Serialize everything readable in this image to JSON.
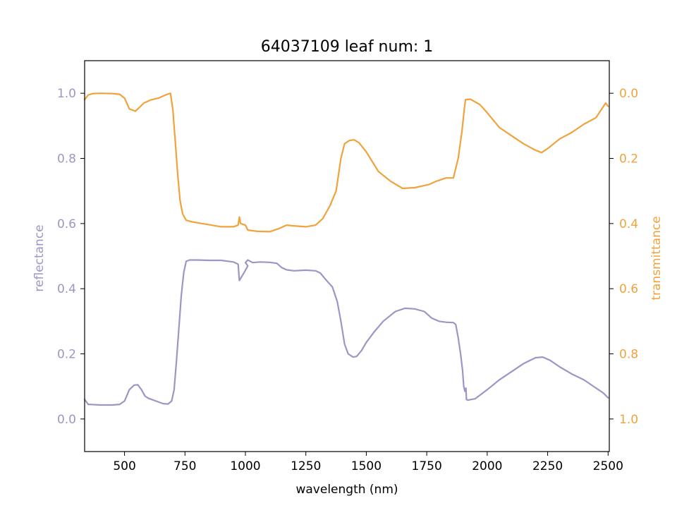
{
  "chart_data": {
    "type": "line",
    "title": "64037109 leaf num: 1",
    "xlabel": "wavelength (nm)",
    "ylabel_left": "reflectance",
    "ylabel_right": "transmittance",
    "xlim": [
      335,
      2505
    ],
    "ylim_left": [
      -0.1,
      1.1
    ],
    "ylim_right_inverted": [
      1.1,
      -0.1
    ],
    "xticks": [
      "500",
      "750",
      "1000",
      "1250",
      "1500",
      "1750",
      "2000",
      "2250",
      "2500"
    ],
    "yticks_left": [
      "0.0",
      "0.2",
      "0.4",
      "0.6",
      "0.8",
      "1.0"
    ],
    "yticks_right": [
      "0.0",
      "0.2",
      "0.4",
      "0.6",
      "0.8",
      "1.0"
    ],
    "grid": false,
    "colors": {
      "reflectance": "#9c96c6",
      "transmittance": "#f0a33c",
      "axes": "#000000"
    },
    "series": [
      {
        "name": "reflectance",
        "axis": "left",
        "points": [
          [
            335,
            0.06
          ],
          [
            350,
            0.045
          ],
          [
            400,
            0.043
          ],
          [
            450,
            0.043
          ],
          [
            480,
            0.045
          ],
          [
            500,
            0.055
          ],
          [
            520,
            0.09
          ],
          [
            540,
            0.104
          ],
          [
            555,
            0.105
          ],
          [
            570,
            0.09
          ],
          [
            585,
            0.07
          ],
          [
            600,
            0.063
          ],
          [
            630,
            0.055
          ],
          [
            660,
            0.047
          ],
          [
            680,
            0.046
          ],
          [
            695,
            0.055
          ],
          [
            705,
            0.09
          ],
          [
            715,
            0.18
          ],
          [
            725,
            0.28
          ],
          [
            735,
            0.38
          ],
          [
            745,
            0.45
          ],
          [
            755,
            0.484
          ],
          [
            770,
            0.488
          ],
          [
            800,
            0.488
          ],
          [
            850,
            0.487
          ],
          [
            900,
            0.487
          ],
          [
            950,
            0.482
          ],
          [
            970,
            0.475
          ],
          [
            975,
            0.425
          ],
          [
            995,
            0.45
          ],
          [
            1010,
            0.47
          ],
          [
            1000,
            0.48
          ],
          [
            1010,
            0.488
          ],
          [
            1030,
            0.48
          ],
          [
            1060,
            0.482
          ],
          [
            1100,
            0.481
          ],
          [
            1130,
            0.478
          ],
          [
            1150,
            0.465
          ],
          [
            1170,
            0.458
          ],
          [
            1200,
            0.455
          ],
          [
            1250,
            0.457
          ],
          [
            1290,
            0.455
          ],
          [
            1310,
            0.448
          ],
          [
            1330,
            0.43
          ],
          [
            1360,
            0.405
          ],
          [
            1380,
            0.36
          ],
          [
            1395,
            0.3
          ],
          [
            1410,
            0.23
          ],
          [
            1425,
            0.2
          ],
          [
            1445,
            0.19
          ],
          [
            1460,
            0.192
          ],
          [
            1480,
            0.21
          ],
          [
            1500,
            0.235
          ],
          [
            1530,
            0.265
          ],
          [
            1570,
            0.3
          ],
          [
            1620,
            0.33
          ],
          [
            1660,
            0.34
          ],
          [
            1700,
            0.338
          ],
          [
            1740,
            0.33
          ],
          [
            1770,
            0.31
          ],
          [
            1800,
            0.3
          ],
          [
            1830,
            0.297
          ],
          [
            1860,
            0.296
          ],
          [
            1870,
            0.29
          ],
          [
            1880,
            0.25
          ],
          [
            1890,
            0.2
          ],
          [
            1898,
            0.15
          ],
          [
            1903,
            0.1
          ],
          [
            1908,
            0.085
          ],
          [
            1912,
            0.095
          ],
          [
            1914,
            0.06
          ],
          [
            1920,
            0.058
          ],
          [
            1950,
            0.062
          ],
          [
            2000,
            0.09
          ],
          [
            2050,
            0.12
          ],
          [
            2100,
            0.145
          ],
          [
            2150,
            0.17
          ],
          [
            2200,
            0.188
          ],
          [
            2230,
            0.19
          ],
          [
            2260,
            0.18
          ],
          [
            2300,
            0.16
          ],
          [
            2350,
            0.138
          ],
          [
            2400,
            0.12
          ],
          [
            2450,
            0.095
          ],
          [
            2480,
            0.08
          ],
          [
            2500,
            0.065
          ]
        ]
      },
      {
        "name": "transmittance",
        "axis": "right",
        "points": [
          [
            335,
            0.02
          ],
          [
            350,
            0.005
          ],
          [
            370,
            0.001
          ],
          [
            400,
            0.0
          ],
          [
            450,
            0.001
          ],
          [
            480,
            0.003
          ],
          [
            500,
            0.015
          ],
          [
            520,
            0.048
          ],
          [
            545,
            0.055
          ],
          [
            560,
            0.045
          ],
          [
            580,
            0.03
          ],
          [
            610,
            0.02
          ],
          [
            640,
            0.015
          ],
          [
            670,
            0.005
          ],
          [
            690,
            0.0
          ],
          [
            700,
            0.05
          ],
          [
            710,
            0.15
          ],
          [
            720,
            0.25
          ],
          [
            730,
            0.33
          ],
          [
            740,
            0.37
          ],
          [
            755,
            0.39
          ],
          [
            780,
            0.395
          ],
          [
            820,
            0.4
          ],
          [
            860,
            0.405
          ],
          [
            900,
            0.41
          ],
          [
            950,
            0.41
          ],
          [
            970,
            0.405
          ],
          [
            975,
            0.38
          ],
          [
            980,
            0.4
          ],
          [
            1000,
            0.405
          ],
          [
            1010,
            0.42
          ],
          [
            1050,
            0.424
          ],
          [
            1100,
            0.425
          ],
          [
            1140,
            0.415
          ],
          [
            1170,
            0.405
          ],
          [
            1200,
            0.407
          ],
          [
            1250,
            0.41
          ],
          [
            1290,
            0.405
          ],
          [
            1320,
            0.385
          ],
          [
            1350,
            0.345
          ],
          [
            1375,
            0.3
          ],
          [
            1395,
            0.2
          ],
          [
            1410,
            0.155
          ],
          [
            1430,
            0.145
          ],
          [
            1450,
            0.143
          ],
          [
            1470,
            0.152
          ],
          [
            1500,
            0.18
          ],
          [
            1550,
            0.24
          ],
          [
            1600,
            0.27
          ],
          [
            1650,
            0.292
          ],
          [
            1700,
            0.29
          ],
          [
            1760,
            0.28
          ],
          [
            1790,
            0.27
          ],
          [
            1830,
            0.26
          ],
          [
            1860,
            0.26
          ],
          [
            1880,
            0.2
          ],
          [
            1895,
            0.12
          ],
          [
            1905,
            0.05
          ],
          [
            1910,
            0.02
          ],
          [
            1930,
            0.018
          ],
          [
            1970,
            0.035
          ],
          [
            2000,
            0.06
          ],
          [
            2050,
            0.105
          ],
          [
            2100,
            0.13
          ],
          [
            2150,
            0.155
          ],
          [
            2200,
            0.175
          ],
          [
            2225,
            0.182
          ],
          [
            2250,
            0.17
          ],
          [
            2300,
            0.14
          ],
          [
            2350,
            0.12
          ],
          [
            2400,
            0.095
          ],
          [
            2450,
            0.075
          ],
          [
            2490,
            0.03
          ],
          [
            2500,
            0.04
          ]
        ]
      }
    ]
  }
}
